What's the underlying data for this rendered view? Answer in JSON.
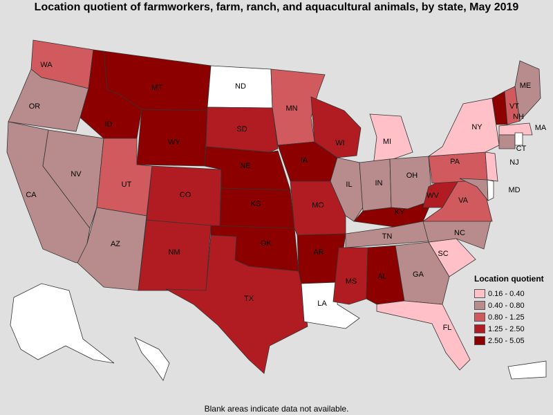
{
  "title": "Location quotient of farmworkers, farm, ranch, and aquacultural animals, by state, May 2019",
  "footer": "Blank areas indicate data not available.",
  "legend": {
    "title": "Location quotient",
    "items": [
      {
        "label": "0.16 - 0.40",
        "color": "#ffc0c8"
      },
      {
        "label": "0.40 - 0.80",
        "color": "#b88c8c"
      },
      {
        "label": "0.80 - 1.25",
        "color": "#d05a5e"
      },
      {
        "label": "1.25 - 2.50",
        "color": "#b01c22"
      },
      {
        "label": "2.50 - 5.05",
        "color": "#8c0000"
      }
    ]
  },
  "states": [
    {
      "abbr": "WA",
      "class": 2
    },
    {
      "abbr": "OR",
      "class": 1
    },
    {
      "abbr": "CA",
      "class": 1
    },
    {
      "abbr": "NV",
      "class": 1
    },
    {
      "abbr": "ID",
      "class": 4
    },
    {
      "abbr": "MT",
      "class": 4
    },
    {
      "abbr": "WY",
      "class": 4
    },
    {
      "abbr": "UT",
      "class": 2
    },
    {
      "abbr": "AZ",
      "class": 1
    },
    {
      "abbr": "CO",
      "class": 3
    },
    {
      "abbr": "NM",
      "class": 3
    },
    {
      "abbr": "ND",
      "class": -1
    },
    {
      "abbr": "SD",
      "class": 3
    },
    {
      "abbr": "NE",
      "class": 4
    },
    {
      "abbr": "KS",
      "class": 4
    },
    {
      "abbr": "OK",
      "class": 4
    },
    {
      "abbr": "TX",
      "class": 3
    },
    {
      "abbr": "MN",
      "class": 2
    },
    {
      "abbr": "IA",
      "class": 4
    },
    {
      "abbr": "MO",
      "class": 3
    },
    {
      "abbr": "AR",
      "class": 4
    },
    {
      "abbr": "LA",
      "class": -1
    },
    {
      "abbr": "WI",
      "class": 3
    },
    {
      "abbr": "IL",
      "class": 1
    },
    {
      "abbr": "MI",
      "class": 0
    },
    {
      "abbr": "IN",
      "class": 1
    },
    {
      "abbr": "OH",
      "class": 1
    },
    {
      "abbr": "KY",
      "class": 4
    },
    {
      "abbr": "TN",
      "class": 1
    },
    {
      "abbr": "MS",
      "class": 3
    },
    {
      "abbr": "AL",
      "class": 4
    },
    {
      "abbr": "GA",
      "class": 1
    },
    {
      "abbr": "FL",
      "class": 0
    },
    {
      "abbr": "SC",
      "class": 0
    },
    {
      "abbr": "NC",
      "class": 1
    },
    {
      "abbr": "VA",
      "class": 2
    },
    {
      "abbr": "WV",
      "class": 3
    },
    {
      "abbr": "PA",
      "class": 2
    },
    {
      "abbr": "NY",
      "class": 0
    },
    {
      "abbr": "VT",
      "class": 4
    },
    {
      "abbr": "NH",
      "class": 2
    },
    {
      "abbr": "ME",
      "class": 1
    },
    {
      "abbr": "MA",
      "class": 0
    },
    {
      "abbr": "CT",
      "class": 1
    },
    {
      "abbr": "NJ",
      "class": 0
    },
    {
      "abbr": "MD",
      "class": 1
    },
    {
      "abbr": "DE",
      "class": -1
    },
    {
      "abbr": "RI",
      "class": -1
    },
    {
      "abbr": "AK",
      "class": -1
    },
    {
      "abbr": "HI",
      "class": -1
    },
    {
      "abbr": "PR",
      "class": -1
    }
  ]
}
